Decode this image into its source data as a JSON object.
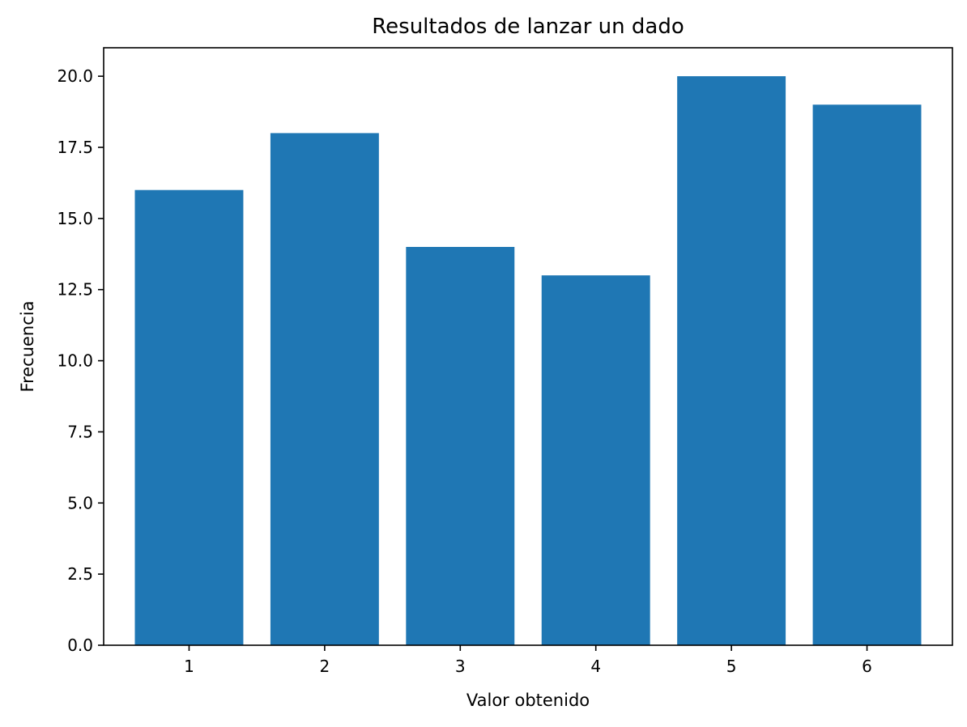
{
  "chart_data": {
    "type": "bar",
    "title": "Resultados de lanzar un dado",
    "xlabel": "Valor obtenido",
    "ylabel": "Frecuencia",
    "categories": [
      "1",
      "2",
      "3",
      "4",
      "5",
      "6"
    ],
    "values": [
      16,
      18,
      14,
      13,
      20,
      19
    ],
    "ylim": [
      0,
      21
    ],
    "xlim": [
      0.37,
      6.63
    ],
    "yticks": [
      "0.0",
      "2.5",
      "5.0",
      "7.5",
      "10.0",
      "12.5",
      "15.0",
      "17.5",
      "20.0"
    ],
    "bar_color": "#1f77b4",
    "grid": false,
    "legend": "none"
  }
}
